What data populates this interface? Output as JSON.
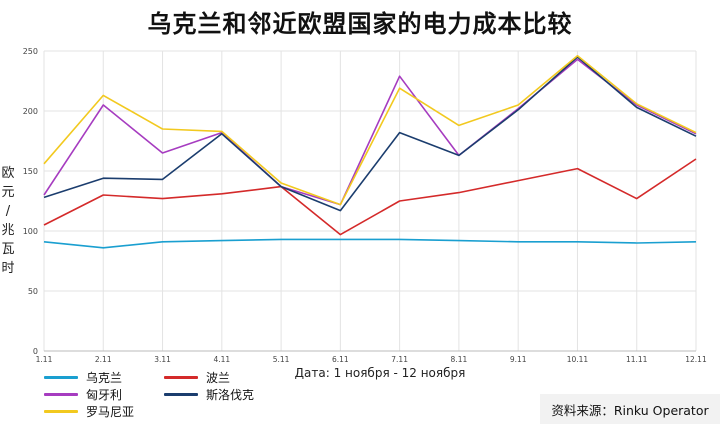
{
  "chart_data": {
    "type": "line",
    "title": "乌克兰和邻近欧盟国家的电力成本比较",
    "ylabel_chars": [
      "欧",
      "元",
      "/",
      "兆",
      "瓦",
      "时"
    ],
    "xlabel": "Дата: 1 ноября - 12 ноября",
    "categories": [
      "1.11",
      "2.11",
      "3.11",
      "4.11",
      "5.11",
      "6.11",
      "7.11",
      "8.11",
      "9.11",
      "10.11",
      "11.11",
      "12.11"
    ],
    "ylim": [
      0,
      250
    ],
    "yticks": [
      0,
      50,
      100,
      150,
      200,
      250
    ],
    "grid": true,
    "legend_position": "bottom-left",
    "series": [
      {
        "name": "乌克兰",
        "color": "#1a9fd0",
        "values": [
          91,
          86,
          91,
          92,
          93,
          93,
          93,
          92,
          91,
          91,
          90,
          91
        ]
      },
      {
        "name": "波兰",
        "color": "#d42a2a",
        "values": [
          105,
          130,
          127,
          131,
          137,
          97,
          125,
          132,
          142,
          152,
          127,
          160
        ]
      },
      {
        "name": "匈牙利",
        "color": "#a63cc0",
        "values": [
          130,
          205,
          165,
          182,
          137,
          122,
          229,
          163,
          202,
          243,
          205,
          181
        ]
      },
      {
        "name": "斯洛伐克",
        "color": "#1b3d6e",
        "values": [
          128,
          144,
          143,
          181,
          137,
          117,
          182,
          163,
          201,
          245,
          203,
          179
        ]
      },
      {
        "name": "罗马尼亚",
        "color": "#f2c91f",
        "values": [
          156,
          213,
          185,
          183,
          140,
          122,
          219,
          188,
          205,
          246,
          206,
          182
        ]
      }
    ],
    "source": "资料来源：Rinku Operator"
  }
}
